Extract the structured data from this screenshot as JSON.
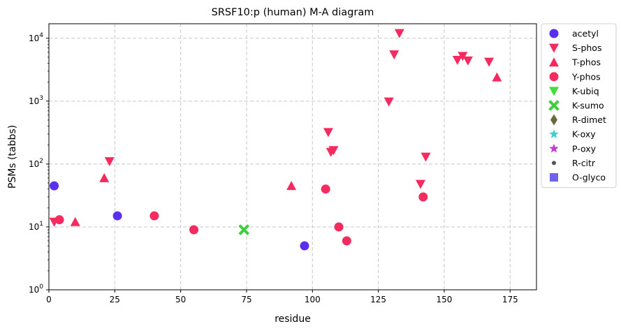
{
  "chart_data": {
    "type": "scatter",
    "title": "SRSF10:p (human) M-A diagram",
    "xlabel": "residue",
    "ylabel": "PSMs (tabbs)",
    "xlim": [
      0,
      185
    ],
    "ylim": [
      1,
      17000
    ],
    "yscale": "log",
    "xticks": [
      0,
      25,
      50,
      75,
      100,
      125,
      150,
      175
    ],
    "yticks": [
      {
        "value": 1,
        "base": "10",
        "exp": "0"
      },
      {
        "value": 10,
        "base": "10",
        "exp": "1"
      },
      {
        "value": 100,
        "base": "10",
        "exp": "2"
      },
      {
        "value": 1000,
        "base": "10",
        "exp": "3"
      },
      {
        "value": 10000,
        "base": "10",
        "exp": "4"
      }
    ],
    "grid": true,
    "legend_position": "outside-right",
    "series": [
      {
        "name": "acetyl",
        "marker": "circle",
        "color": "#5b2ff0",
        "points": [
          [
            2,
            45
          ],
          [
            26,
            15
          ],
          [
            97,
            5
          ]
        ]
      },
      {
        "name": "S-phos",
        "marker": "triangle-down",
        "color": "#f52a5e",
        "points": [
          [
            2,
            12
          ],
          [
            23,
            110
          ],
          [
            106,
            320
          ],
          [
            107,
            155
          ],
          [
            108,
            165
          ],
          [
            129,
            980
          ],
          [
            131,
            5500
          ],
          [
            133,
            12000
          ],
          [
            141,
            48
          ],
          [
            143,
            130
          ],
          [
            155,
            4500
          ],
          [
            157,
            5200
          ],
          [
            159,
            4400
          ],
          [
            167,
            4200
          ]
        ]
      },
      {
        "name": "T-phos",
        "marker": "triangle-up",
        "color": "#f52a5e",
        "points": [
          [
            10,
            12
          ],
          [
            21,
            60
          ],
          [
            92,
            45
          ],
          [
            170,
            2400
          ]
        ]
      },
      {
        "name": "Y-phos",
        "marker": "circle",
        "color": "#f52a5e",
        "points": [
          [
            4,
            13
          ],
          [
            40,
            15
          ],
          [
            55,
            9
          ],
          [
            105,
            40
          ],
          [
            110,
            10
          ],
          [
            113,
            6
          ],
          [
            142,
            30
          ]
        ]
      },
      {
        "name": "K-ubiq",
        "marker": "triangle-down",
        "color": "#3ee03e",
        "points": []
      },
      {
        "name": "K-sumo",
        "marker": "x",
        "color": "#3ecf3e",
        "points": [
          [
            74,
            9
          ]
        ]
      },
      {
        "name": "R-dimet",
        "marker": "diamond",
        "color": "#6b6a3c",
        "points": []
      },
      {
        "name": "K-oxy",
        "marker": "star",
        "color": "#3ecfd4",
        "points": []
      },
      {
        "name": "P-oxy",
        "marker": "star",
        "color": "#c23ed4",
        "points": []
      },
      {
        "name": "R-citr",
        "marker": "dot",
        "color": "#555555",
        "points": []
      },
      {
        "name": "O-glyco",
        "marker": "square",
        "color": "#6f63e8",
        "points": []
      }
    ]
  }
}
